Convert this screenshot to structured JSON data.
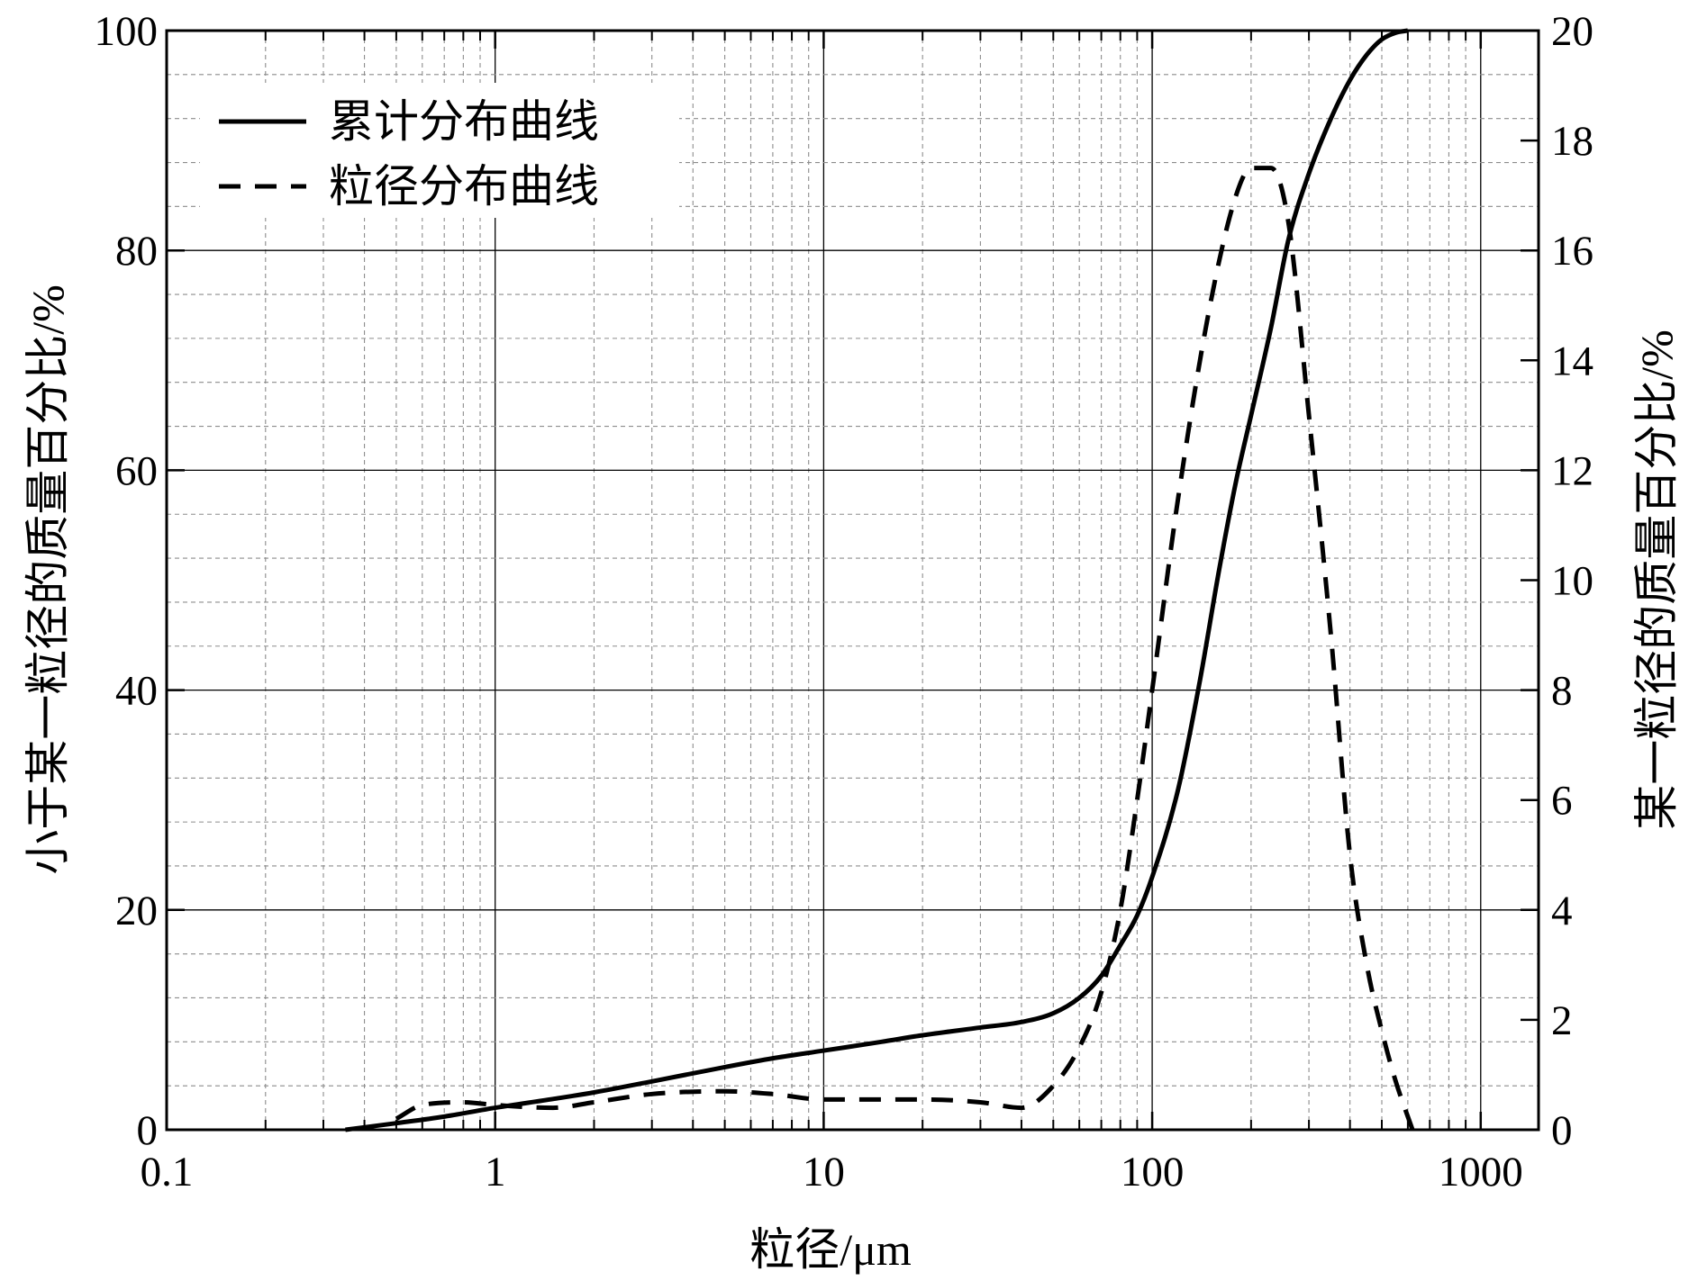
{
  "chart_data": {
    "type": "line",
    "xlabel": "粒径/μm",
    "ylabel_left": "小于某一粒径的质量百分比/%",
    "ylabel_right": "某一粒径的质量百分比/%",
    "x_scale": "log",
    "xlim": [
      0.1,
      1500
    ],
    "ylim_left": [
      0,
      100
    ],
    "ylim_right": [
      0,
      20
    ],
    "x_ticks": [
      0.1,
      1,
      10,
      100,
      1000
    ],
    "x_tick_labels": [
      "0.1",
      "1",
      "10",
      "100",
      "1000"
    ],
    "y_left_ticks": [
      0,
      20,
      40,
      60,
      80,
      100
    ],
    "y_left_tick_labels": [
      "0",
      "20",
      "40",
      "60",
      "80",
      "100"
    ],
    "y_right_ticks": [
      0,
      2,
      4,
      6,
      8,
      10,
      12,
      14,
      16,
      18,
      20
    ],
    "y_right_tick_labels": [
      "0",
      "2",
      "4",
      "6",
      "8",
      "10",
      "12",
      "14",
      "16",
      "18",
      "20"
    ],
    "grid": true,
    "legend_position": "top-left",
    "series": [
      {
        "name": "累计分布曲线",
        "axis": "left",
        "style": "solid",
        "points": [
          [
            0.35,
            0.0
          ],
          [
            0.5,
            0.6
          ],
          [
            0.7,
            1.2
          ],
          [
            1.0,
            2.0
          ],
          [
            1.5,
            2.8
          ],
          [
            2.0,
            3.4
          ],
          [
            3.0,
            4.4
          ],
          [
            5.0,
            5.7
          ],
          [
            7.0,
            6.5
          ],
          [
            10.0,
            7.2
          ],
          [
            15.0,
            8.0
          ],
          [
            20.0,
            8.6
          ],
          [
            30.0,
            9.3
          ],
          [
            40.0,
            9.8
          ],
          [
            50.0,
            10.6
          ],
          [
            60.0,
            12.0
          ],
          [
            70.0,
            14.0
          ],
          [
            80.0,
            16.8
          ],
          [
            90.0,
            19.5
          ],
          [
            100.0,
            23.0
          ],
          [
            120.0,
            31.0
          ],
          [
            140.0,
            41.0
          ],
          [
            160.0,
            51.0
          ],
          [
            180.0,
            59.0
          ],
          [
            200.0,
            65.0
          ],
          [
            230.0,
            73.0
          ],
          [
            260.0,
            81.0
          ],
          [
            300.0,
            87.0
          ],
          [
            350.0,
            92.0
          ],
          [
            400.0,
            95.5
          ],
          [
            450.0,
            97.8
          ],
          [
            500.0,
            99.2
          ],
          [
            550.0,
            99.8
          ],
          [
            600.0,
            100.0
          ]
        ]
      },
      {
        "name": "粒径分布曲线",
        "axis": "right",
        "style": "dashed",
        "points": [
          [
            0.5,
            0.2
          ],
          [
            0.6,
            0.45
          ],
          [
            0.8,
            0.5
          ],
          [
            1.0,
            0.45
          ],
          [
            1.5,
            0.4
          ],
          [
            2.0,
            0.5
          ],
          [
            3.0,
            0.65
          ],
          [
            5.0,
            0.7
          ],
          [
            7.0,
            0.65
          ],
          [
            10.0,
            0.55
          ],
          [
            20.0,
            0.55
          ],
          [
            30.0,
            0.5
          ],
          [
            40.0,
            0.4
          ],
          [
            50.0,
            0.8
          ],
          [
            60.0,
            1.5
          ],
          [
            70.0,
            2.5
          ],
          [
            80.0,
            4.0
          ],
          [
            90.0,
            6.0
          ],
          [
            100.0,
            8.0
          ],
          [
            120.0,
            11.5
          ],
          [
            150.0,
            15.0
          ],
          [
            180.0,
            17.0
          ],
          [
            200.0,
            17.5
          ],
          [
            230.0,
            17.5
          ],
          [
            260.0,
            16.5
          ],
          [
            300.0,
            13.0
          ],
          [
            350.0,
            9.0
          ],
          [
            400.0,
            5.0
          ],
          [
            450.0,
            3.0
          ],
          [
            500.0,
            1.8
          ],
          [
            550.0,
            0.9
          ],
          [
            620.0,
            0.0
          ]
        ]
      }
    ]
  }
}
